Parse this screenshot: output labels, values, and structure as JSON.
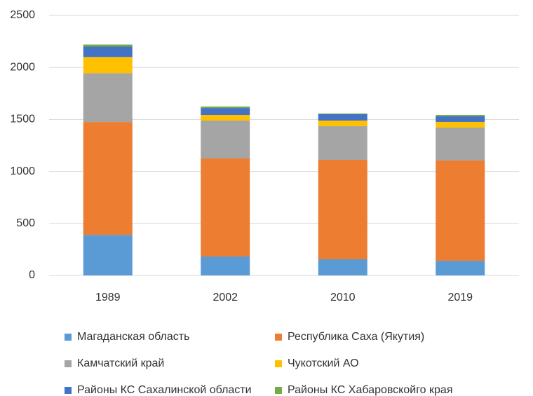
{
  "chart_data": {
    "type": "stacked-bar",
    "categories": [
      "1989",
      "2002",
      "2010",
      "2019"
    ],
    "series": [
      {
        "name": "Магаданская область",
        "color": "#5b9bd5",
        "values": [
          390,
          182,
          155,
          141
        ]
      },
      {
        "name": "Республика Саха (Якутия)",
        "color": "#ed7d31",
        "values": [
          1085,
          943,
          957,
          964
        ]
      },
      {
        "name": "Камчатский край",
        "color": "#a5a5a5",
        "values": [
          470,
          364,
          323,
          317
        ]
      },
      {
        "name": "Чукотский АО",
        "color": "#ffc000",
        "values": [
          155,
          54,
          54,
          54
        ]
      },
      {
        "name": "Районы КС Сахалинской области",
        "color": "#4472c4",
        "values": [
          100,
          67,
          61,
          54
        ]
      },
      {
        "name": "Районы КС Хабаровскойго края",
        "color": "#70ad47",
        "values": [
          20,
          14,
          7,
          13
        ]
      }
    ],
    "ylim": [
      0,
      2500
    ],
    "yticks": [
      0,
      500,
      1000,
      1500,
      2000,
      2500
    ],
    "grid": true
  }
}
